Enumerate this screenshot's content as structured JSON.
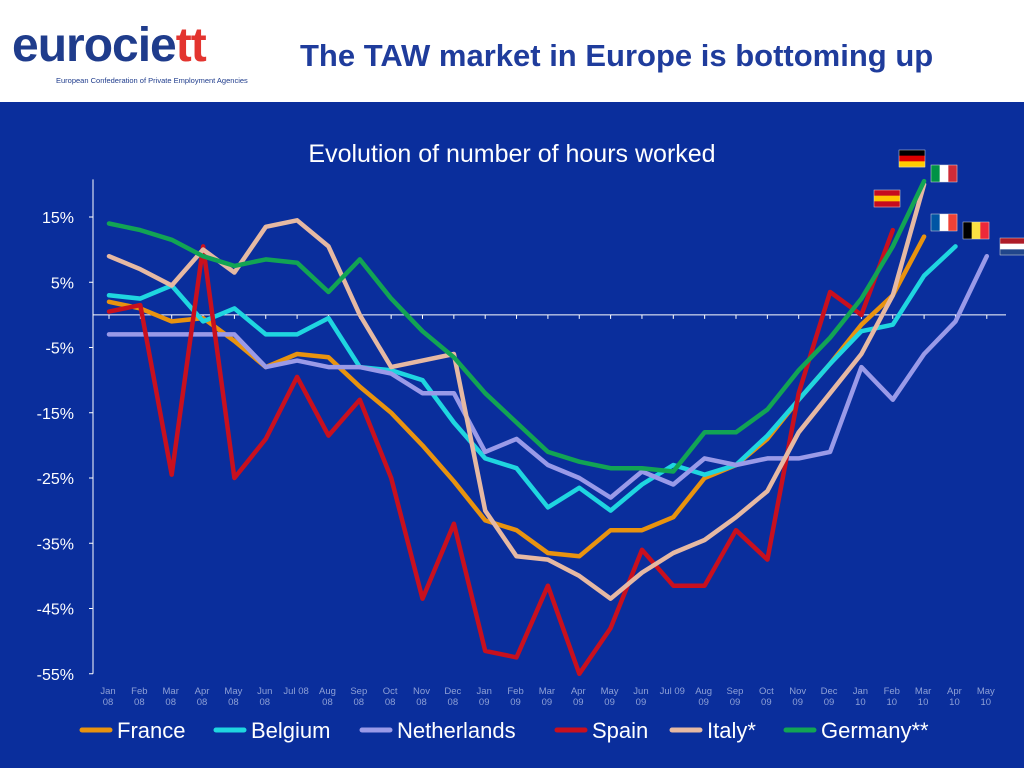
{
  "header": {
    "logo_main": "eurocie",
    "logo_accent": "tt",
    "logo_tagline": "European Confederation of Private Employment Agencies",
    "title": "The TAW market in Europe is bottoming up"
  },
  "chart_data": {
    "type": "line",
    "title": "Evolution of number of hours worked",
    "xlabel": "",
    "ylabel": "",
    "ylim": [
      -55,
      20
    ],
    "yticks": [
      "15%",
      "5%",
      "-5%",
      "-15%",
      "-25%",
      "-35%",
      "-45%",
      "-55%"
    ],
    "ytick_values": [
      15,
      5,
      -5,
      -15,
      -25,
      -35,
      -45,
      -55
    ],
    "categories": [
      [
        "Jan",
        "08"
      ],
      [
        "Feb",
        "08"
      ],
      [
        "Mar",
        "08"
      ],
      [
        "Apr",
        "08"
      ],
      [
        "May",
        "08"
      ],
      [
        "Jun",
        "08"
      ],
      [
        "Jul 08",
        ""
      ],
      [
        "Aug",
        "08"
      ],
      [
        "Sep",
        "08"
      ],
      [
        "Oct",
        "08"
      ],
      [
        "Nov",
        "08"
      ],
      [
        "Dec",
        "08"
      ],
      [
        "Jan",
        "09"
      ],
      [
        "Feb",
        "09"
      ],
      [
        "Mar",
        "09"
      ],
      [
        "Apr",
        "09"
      ],
      [
        "May",
        "09"
      ],
      [
        "Jun",
        "09"
      ],
      [
        "Jul 09",
        ""
      ],
      [
        "Aug",
        "09"
      ],
      [
        "Sep",
        "09"
      ],
      [
        "Oct",
        "09"
      ],
      [
        "Nov",
        "09"
      ],
      [
        "Dec",
        "09"
      ],
      [
        "Jan",
        "10"
      ],
      [
        "Feb",
        "10"
      ],
      [
        "Mar",
        "10"
      ],
      [
        "Apr",
        "10"
      ],
      [
        "May",
        "10"
      ]
    ],
    "legend_position": "bottom",
    "grid": false,
    "series": [
      {
        "name": "France",
        "color": "#e8930f",
        "values": [
          2,
          1,
          -1,
          -0.5,
          -4,
          -8,
          -6,
          -6.5,
          -11,
          -15,
          -20,
          -25.5,
          -31.5,
          -33,
          -36.5,
          -37,
          -33,
          -33,
          -31,
          -25,
          -23,
          -19,
          -13,
          -7.5,
          -1.5,
          3,
          12,
          null,
          null
        ]
      },
      {
        "name": "Belgium",
        "color": "#1fd6e0",
        "values": [
          3,
          2.5,
          4.5,
          -1,
          1,
          -3,
          -3,
          -0.5,
          -8,
          -8.5,
          -10,
          -16.5,
          -22,
          -23.5,
          -29.5,
          -26.5,
          -30,
          -26,
          -23,
          -24.5,
          -23,
          -18.5,
          -13,
          -7.5,
          -2.5,
          -1.5,
          6,
          10.5,
          null
        ]
      },
      {
        "name": "Netherlands",
        "color": "#9a9ae8",
        "values": [
          -3,
          -3,
          -3,
          -3,
          -3,
          -8,
          -7,
          -8,
          -8,
          -9,
          -12,
          -12,
          -21,
          -19,
          -23,
          -25,
          -28,
          -24,
          -26,
          -22,
          -23,
          -22,
          -22,
          -21,
          -8,
          -13,
          -6,
          -1,
          9
        ]
      },
      {
        "name": "Spain",
        "color": "#c8101e",
        "values": [
          0.5,
          1.5,
          -24.5,
          10.5,
          -25,
          -19,
          -9.5,
          -18.5,
          -13,
          -25,
          -43.5,
          -32,
          -51.5,
          -52.5,
          -41.5,
          -55,
          -48,
          -36,
          -41.5,
          -41.5,
          -33,
          -37.5,
          -12,
          3.5,
          0,
          13,
          null,
          null,
          null
        ]
      },
      {
        "name": "Italy*",
        "color": "#e6b9a3",
        "values": [
          9,
          7,
          4.5,
          10,
          6.5,
          13.5,
          14.5,
          10.5,
          0,
          -8,
          -7,
          -6,
          -30,
          -37,
          -37.5,
          -40,
          -43.5,
          -39.5,
          -36.5,
          -34.5,
          -31,
          -27,
          -18,
          -12,
          -6,
          3,
          20,
          null,
          null
        ]
      },
      {
        "name": "Germany**",
        "color": "#12a454",
        "values": [
          14,
          13,
          11.5,
          9,
          7.5,
          8.5,
          8,
          3.5,
          8.5,
          2.5,
          -2.5,
          -6.5,
          -12,
          -16.5,
          -21,
          -22.5,
          -23.5,
          -23.5,
          -24,
          -18,
          -18,
          -14.5,
          -8.5,
          -3.5,
          2.5,
          10.5,
          20.5,
          null,
          null
        ]
      }
    ],
    "flags": [
      {
        "country": "Germany",
        "bands": [
          "#000000",
          "#dd0000",
          "#ffce00"
        ],
        "orientation": "horizontal"
      },
      {
        "country": "Italy",
        "bands": [
          "#009246",
          "#ffffff",
          "#ce2b37"
        ],
        "orientation": "vertical"
      },
      {
        "country": "Spain",
        "bands": [
          "#c60b1e",
          "#ffc400",
          "#c60b1e"
        ],
        "orientation": "horizontal"
      },
      {
        "country": "France",
        "bands": [
          "#0055a4",
          "#ffffff",
          "#ef4135"
        ],
        "orientation": "vertical"
      },
      {
        "country": "Belgium",
        "bands": [
          "#000000",
          "#fae042",
          "#ed2939"
        ],
        "orientation": "vertical"
      },
      {
        "country": "Netherlands",
        "bands": [
          "#ae1c28",
          "#ffffff",
          "#21468b"
        ],
        "orientation": "horizontal"
      }
    ]
  }
}
